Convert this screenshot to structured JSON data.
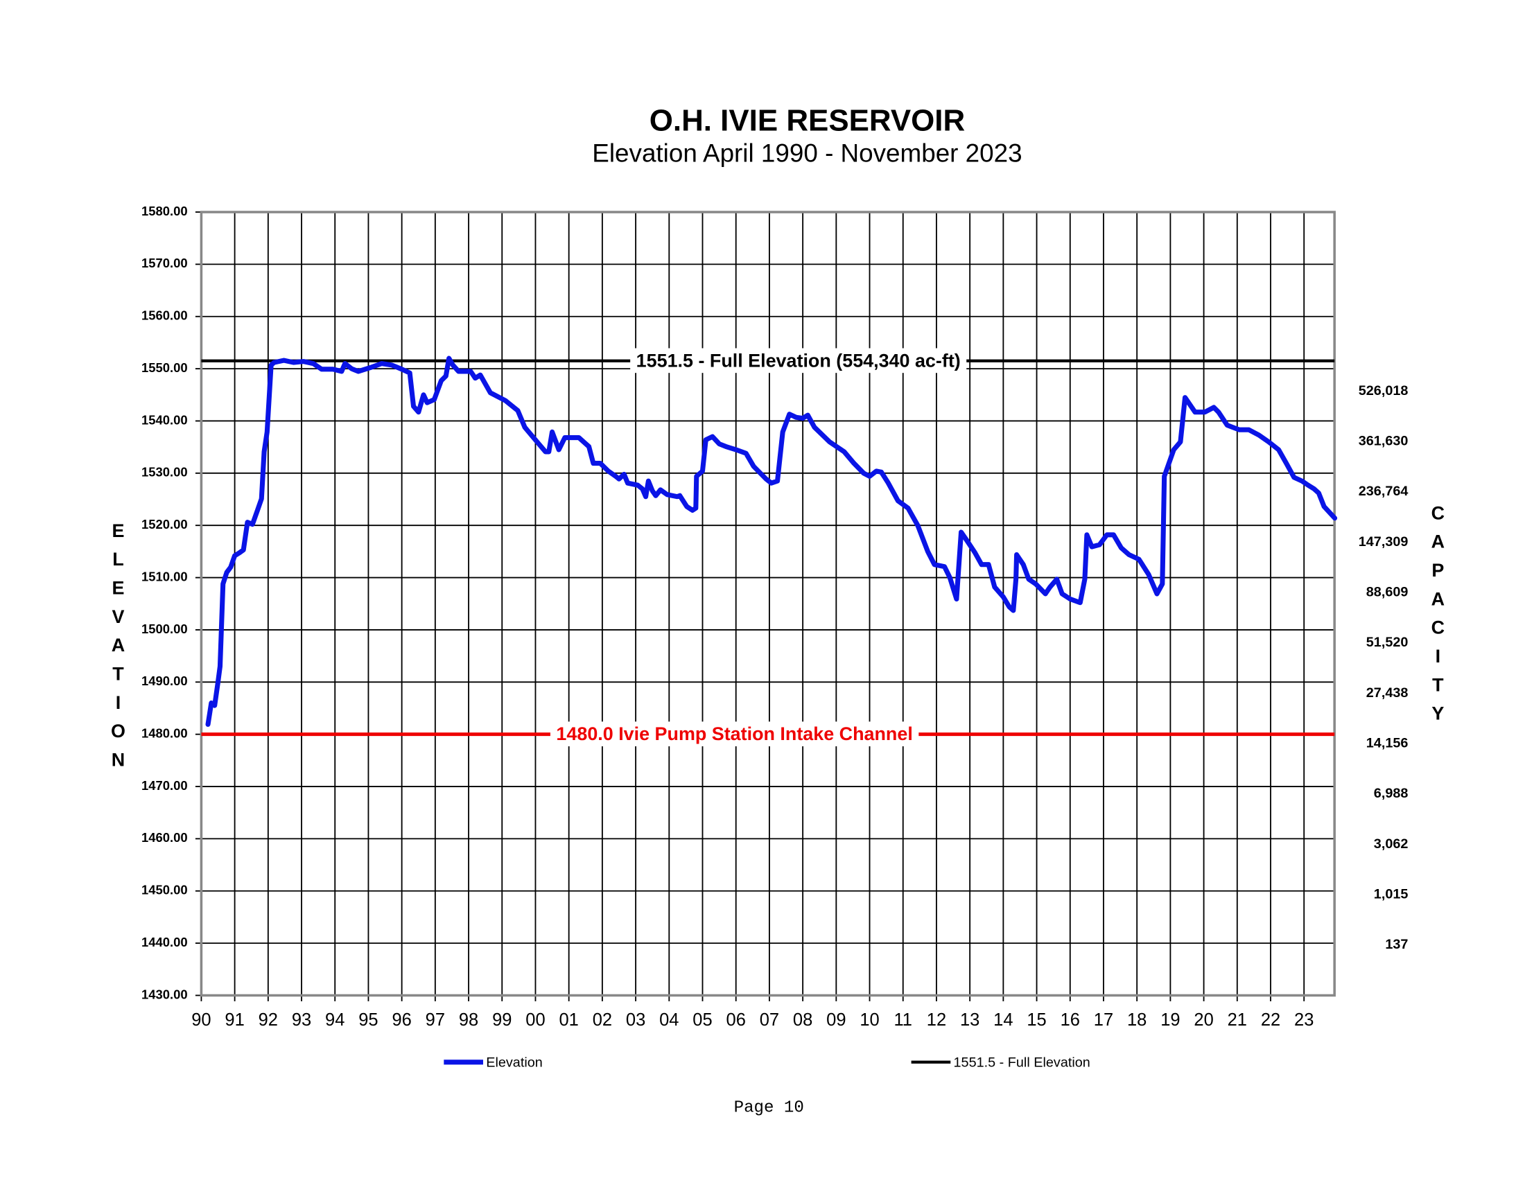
{
  "chart_data": {
    "type": "line",
    "title": "O.H. IVIE RESERVOIR",
    "subtitle": "Elevation April 1990 - November 2023",
    "y_label": "ELEVATION",
    "y2_label": "CAPACITY",
    "footer": "Page 10",
    "grid": true,
    "xlim": [
      1990,
      2024
    ],
    "xticks": [
      {
        "value": 1990,
        "label": "90"
      },
      {
        "value": 1991,
        "label": "91"
      },
      {
        "value": 1992,
        "label": "92"
      },
      {
        "value": 1993,
        "label": "93"
      },
      {
        "value": 1994,
        "label": "94"
      },
      {
        "value": 1995,
        "label": "95"
      },
      {
        "value": 1996,
        "label": "96"
      },
      {
        "value": 1997,
        "label": "97"
      },
      {
        "value": 1998,
        "label": "98"
      },
      {
        "value": 1999,
        "label": "99"
      },
      {
        "value": 2000,
        "label": "00"
      },
      {
        "value": 2001,
        "label": "01"
      },
      {
        "value": 2002,
        "label": "02"
      },
      {
        "value": 2003,
        "label": "03"
      },
      {
        "value": 2004,
        "label": "04"
      },
      {
        "value": 2005,
        "label": "05"
      },
      {
        "value": 2006,
        "label": "06"
      },
      {
        "value": 2007,
        "label": "07"
      },
      {
        "value": 2008,
        "label": "08"
      },
      {
        "value": 2009,
        "label": "09"
      },
      {
        "value": 2010,
        "label": "10"
      },
      {
        "value": 2011,
        "label": "11"
      },
      {
        "value": 2012,
        "label": "12"
      },
      {
        "value": 2013,
        "label": "13"
      },
      {
        "value": 2014,
        "label": "14"
      },
      {
        "value": 2015,
        "label": "15"
      },
      {
        "value": 2016,
        "label": "16"
      },
      {
        "value": 2017,
        "label": "17"
      },
      {
        "value": 2018,
        "label": "18"
      },
      {
        "value": 2019,
        "label": "19"
      },
      {
        "value": 2020,
        "label": "20"
      },
      {
        "value": 2021,
        "label": "21"
      },
      {
        "value": 2022,
        "label": "22"
      },
      {
        "value": 2023,
        "label": "23"
      }
    ],
    "ylim": [
      1430,
      1580
    ],
    "yticks": [
      {
        "value": 1430,
        "label": "1430.00"
      },
      {
        "value": 1440,
        "label": "1440.00"
      },
      {
        "value": 1450,
        "label": "1450.00"
      },
      {
        "value": 1460,
        "label": "1460.00"
      },
      {
        "value": 1470,
        "label": "1470.00"
      },
      {
        "value": 1480,
        "label": "1480.00"
      },
      {
        "value": 1490,
        "label": "1490.00"
      },
      {
        "value": 1500,
        "label": "1500.00"
      },
      {
        "value": 1510,
        "label": "1510.00"
      },
      {
        "value": 1520,
        "label": "1520.00"
      },
      {
        "value": 1530,
        "label": "1530.00"
      },
      {
        "value": 1540,
        "label": "1540.00"
      },
      {
        "value": 1550,
        "label": "1550.00"
      },
      {
        "value": 1560,
        "label": "1560.00"
      },
      {
        "value": 1570,
        "label": "1570.00"
      },
      {
        "value": 1580,
        "label": "1580.00"
      }
    ],
    "capacity_ticks": [
      {
        "value": 1440,
        "label": "137"
      },
      {
        "value": 1450,
        "label": "1,015"
      },
      {
        "value": 1460,
        "label": "3,062"
      },
      {
        "value": 1470,
        "label": "6,988"
      },
      {
        "value": 1480,
        "label": "14,156"
      },
      {
        "value": 1490,
        "label": "27,438"
      },
      {
        "value": 1500,
        "label": "51,520"
      },
      {
        "value": 1510,
        "label": "88,609"
      },
      {
        "value": 1520,
        "label": "147,309"
      },
      {
        "value": 1530,
        "label": "236,764"
      },
      {
        "value": 1540,
        "label": "361,630"
      },
      {
        "value": 1550,
        "label": "526,018"
      }
    ],
    "reference_lines": [
      {
        "name": "1551.5 - Full Elevation",
        "value": 1551.5,
        "label": "1551.5 - Full Elevation (554,340 ac-ft)",
        "color": "#000000"
      },
      {
        "value": 1480,
        "label": "1480.0 Ivie Pump Station Intake Channel",
        "color": "#ee0000"
      }
    ],
    "series": [
      {
        "name": "Elevation",
        "color": "#0a14e6",
        "x": [
          1990.2,
          1990.3,
          1990.4,
          1990.5,
          1990.56,
          1990.65,
          1990.76,
          1990.88,
          1991.0,
          1991.15,
          1991.26,
          1991.38,
          1991.53,
          1991.68,
          1991.8,
          1991.88,
          1991.97,
          1992.09,
          1992.18,
          1992.47,
          1992.76,
          1993.06,
          1993.35,
          1993.6,
          1993.94,
          1994.2,
          1994.3,
          1994.5,
          1994.7,
          1995.1,
          1995.4,
          1995.7,
          1996.0,
          1996.24,
          1996.35,
          1996.5,
          1996.65,
          1996.76,
          1996.97,
          1997.18,
          1997.32,
          1997.41,
          1997.53,
          1997.7,
          1998.06,
          1998.2,
          1998.35,
          1998.65,
          1999.1,
          1999.47,
          1999.68,
          2000.1,
          2000.3,
          2000.4,
          2000.5,
          2000.7,
          2000.88,
          2001.3,
          2001.6,
          2001.73,
          2001.94,
          2002.18,
          2002.4,
          2002.5,
          2002.65,
          2002.76,
          2003.06,
          2003.2,
          2003.3,
          2003.38,
          2003.5,
          2003.6,
          2003.74,
          2003.94,
          2004.24,
          2004.32,
          2004.53,
          2004.7,
          2004.8,
          2004.82,
          2005.0,
          2005.1,
          2005.3,
          2005.5,
          2005.7,
          2006.0,
          2006.3,
          2006.53,
          2006.9,
          2007.06,
          2007.24,
          2007.4,
          2007.6,
          2007.8,
          2008.0,
          2008.15,
          2008.35,
          2008.8,
          2009.24,
          2009.53,
          2009.82,
          2010.0,
          2010.2,
          2010.35,
          2010.56,
          2010.85,
          2011.15,
          2011.44,
          2011.74,
          2011.94,
          2012.24,
          2012.4,
          2012.6,
          2012.74,
          2012.9,
          2013.15,
          2013.35,
          2013.56,
          2013.74,
          2014.0,
          2014.18,
          2014.3,
          2014.38,
          2014.4,
          2014.6,
          2014.76,
          2014.97,
          2015.26,
          2015.4,
          2015.6,
          2015.76,
          2016.0,
          2016.3,
          2016.44,
          2016.5,
          2016.65,
          2016.88,
          2017.1,
          2017.3,
          2017.53,
          2017.76,
          2018.06,
          2018.35,
          2018.6,
          2018.76,
          2018.82,
          2019.1,
          2019.3,
          2019.44,
          2019.74,
          2020.03,
          2020.3,
          2020.44,
          2020.7,
          2021.06,
          2021.35,
          2021.65,
          2021.94,
          2022.24,
          2022.47,
          2022.7,
          2022.94,
          2023.12,
          2023.3,
          2023.44,
          2023.6,
          2023.92
        ],
        "values": [
          1481.9,
          1486,
          1485.5,
          1490,
          1493,
          1508.8,
          1511,
          1512,
          1514.2,
          1514.8,
          1515.3,
          1520.6,
          1520.2,
          1522.9,
          1525.1,
          1534.1,
          1537.9,
          1550.7,
          1551.2,
          1551.6,
          1551.2,
          1551.4,
          1551,
          1549.9,
          1549.9,
          1549.5,
          1551,
          1550,
          1549.5,
          1550.3,
          1551,
          1550.7,
          1549.9,
          1549.2,
          1542.8,
          1541.7,
          1545,
          1543.5,
          1544.1,
          1547.7,
          1548.6,
          1552,
          1550.7,
          1549.5,
          1549.5,
          1548.2,
          1548.8,
          1545.4,
          1543.9,
          1542,
          1538.8,
          1535.6,
          1534.1,
          1534.1,
          1537.9,
          1534.5,
          1536.8,
          1536.8,
          1535.1,
          1531.9,
          1531.9,
          1530.4,
          1529.4,
          1528.9,
          1529.8,
          1528.1,
          1527.7,
          1527,
          1525.5,
          1528.5,
          1526.6,
          1525.7,
          1526.8,
          1525.9,
          1525.5,
          1525.7,
          1523.6,
          1522.9,
          1523.3,
          1529.4,
          1530.4,
          1536.4,
          1537,
          1535.6,
          1535.1,
          1534.5,
          1533.8,
          1531.3,
          1528.9,
          1528.1,
          1528.5,
          1537.9,
          1541.3,
          1540.7,
          1540.5,
          1541.1,
          1538.8,
          1536,
          1534.1,
          1531.9,
          1530,
          1529.4,
          1530.4,
          1530.2,
          1528.1,
          1524.7,
          1523.3,
          1520,
          1515,
          1512.5,
          1512.1,
          1510,
          1505.9,
          1518.7,
          1517.2,
          1514.8,
          1512.5,
          1512.5,
          1508.2,
          1506.3,
          1504.4,
          1503.7,
          1509.7,
          1514.4,
          1512.5,
          1509.7,
          1508.8,
          1506.9,
          1508.2,
          1509.7,
          1506.9,
          1505.9,
          1505.2,
          1509.7,
          1518.2,
          1515.9,
          1516.3,
          1518.2,
          1518.2,
          1515.7,
          1514.4,
          1513.5,
          1510.6,
          1506.9,
          1508.8,
          1529.4,
          1534.5,
          1536,
          1544.5,
          1541.7,
          1541.7,
          1542.6,
          1541.7,
          1539.2,
          1538.3,
          1538.3,
          1537.3,
          1536,
          1534.5,
          1531.9,
          1529.2,
          1528.5,
          1527.7,
          1527,
          1526.2,
          1523.6,
          1521.4
        ]
      }
    ]
  }
}
